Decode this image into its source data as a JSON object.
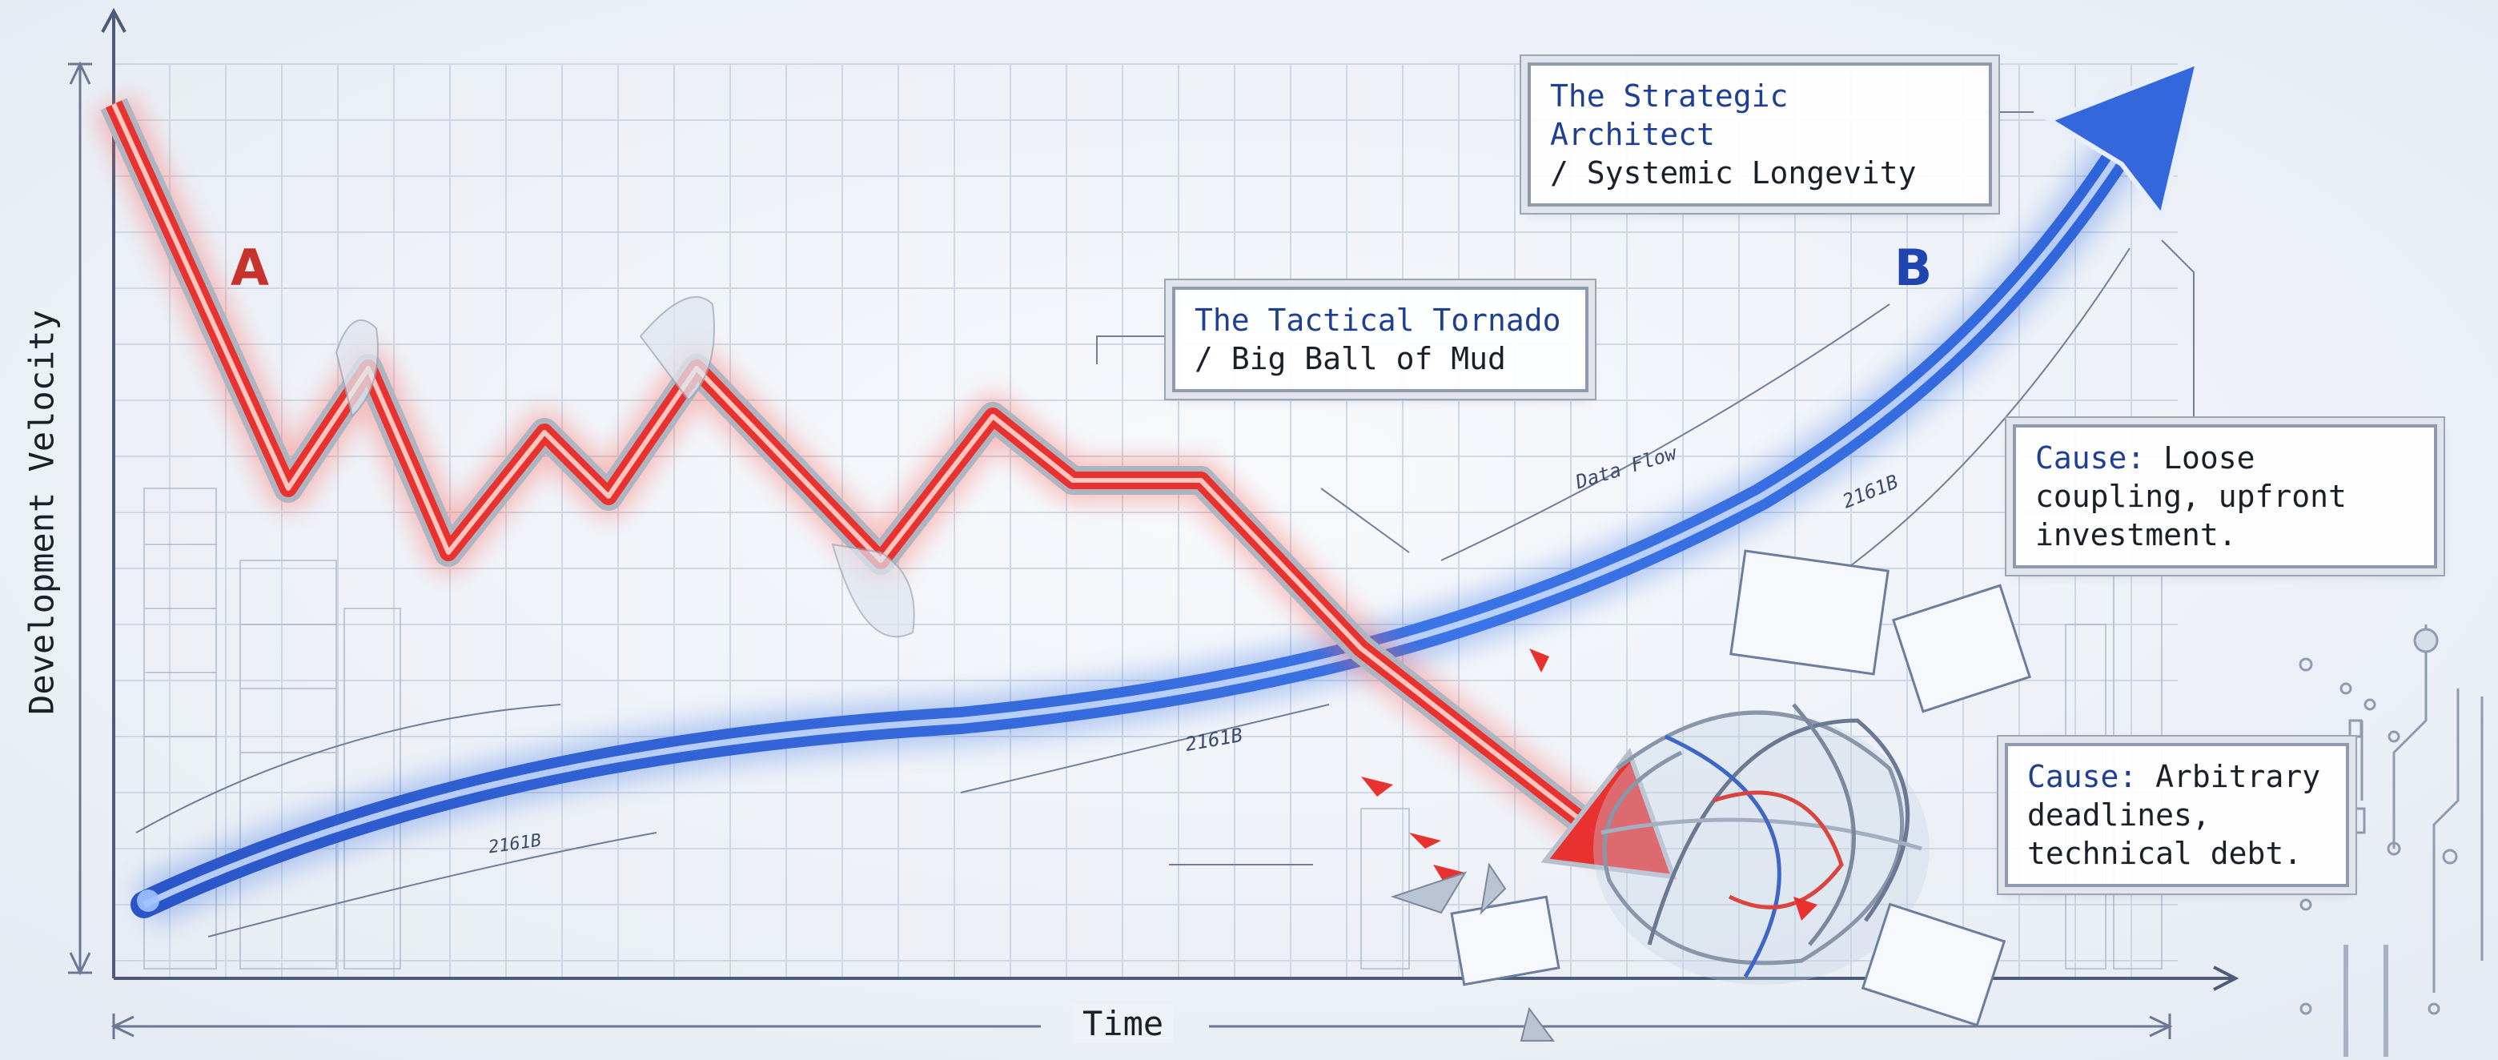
{
  "axes": {
    "y_label": "Development Velocity",
    "x_label": "Time"
  },
  "series_markers": {
    "a": "A",
    "b": "B"
  },
  "callouts": {
    "tactical": {
      "title": "The Tactical Tornado",
      "subtitle": "/ Big Ball of Mud"
    },
    "strategic": {
      "title": "The Strategic Architect",
      "subtitle": "/ Systemic Longevity"
    },
    "cause_loose": {
      "label": "Cause:",
      "text": "Loose coupling, upfront investment."
    },
    "cause_arbitrary": {
      "label": "Cause:",
      "text": "Arbitrary deadlines, technical debt."
    }
  },
  "annotations": {
    "data_flow": "Data Flow",
    "upper_code": "2161B",
    "lower_code": "2161B",
    "bottom_code": "2161B"
  },
  "colors": {
    "tactical_line": "#e8322f",
    "strategic_line": "#2f63d8",
    "grid": "#c9d3e2",
    "accent_text": "#1f3f93",
    "marker_a": "#c8322c",
    "marker_b": "#1f45b0"
  },
  "icons": [
    "tangled-wire-ball-icon",
    "circuit-trace-icon",
    "building-sketch-icon"
  ]
}
